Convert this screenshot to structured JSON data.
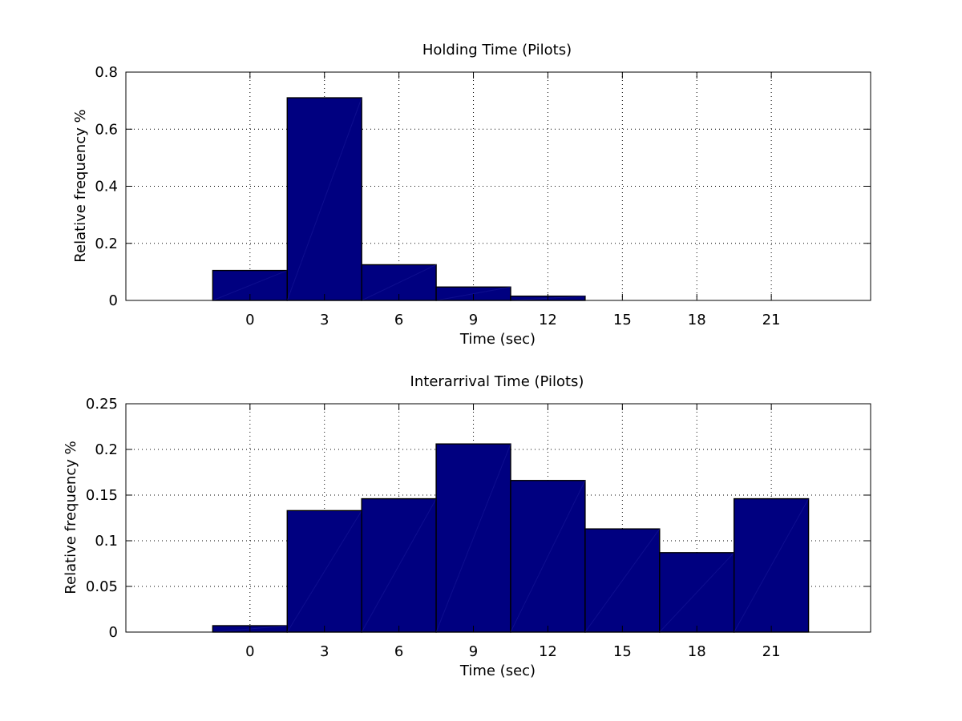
{
  "chart_data": [
    {
      "type": "bar",
      "title": "Holding Time (Pilots)",
      "xlabel": "Time (sec)",
      "ylabel": "Relative frequency %",
      "xlim": [
        -5,
        25
      ],
      "ylim": [
        0,
        0.8
      ],
      "xticks": [
        "0",
        "3",
        "6",
        "9",
        "12",
        "15",
        "18",
        "21"
      ],
      "yticks": [
        "0",
        "0.2",
        "0.4",
        "0.6",
        "0.8"
      ],
      "grid": true,
      "legend": "none",
      "bar_color": "#000080",
      "x": [
        0,
        3,
        6,
        9,
        12,
        15,
        18,
        21
      ],
      "values": [
        0.105,
        0.71,
        0.125,
        0.047,
        0.015,
        0.0,
        0.0,
        0.0
      ]
    },
    {
      "type": "bar",
      "title": "Interarrival Time (Pilots)",
      "xlabel": "Time (sec)",
      "ylabel": "Relative frequency %",
      "xlim": [
        -5,
        25
      ],
      "ylim": [
        0,
        0.25
      ],
      "xticks": [
        "0",
        "3",
        "6",
        "9",
        "12",
        "15",
        "18",
        "21"
      ],
      "yticks": [
        "0",
        "0.05",
        "0.1",
        "0.15",
        "0.2",
        "0.25"
      ],
      "grid": true,
      "legend": "none",
      "bar_color": "#000080",
      "x": [
        0,
        3,
        6,
        9,
        12,
        15,
        18,
        21
      ],
      "values": [
        0.007,
        0.133,
        0.146,
        0.206,
        0.166,
        0.113,
        0.087,
        0.146
      ]
    }
  ]
}
